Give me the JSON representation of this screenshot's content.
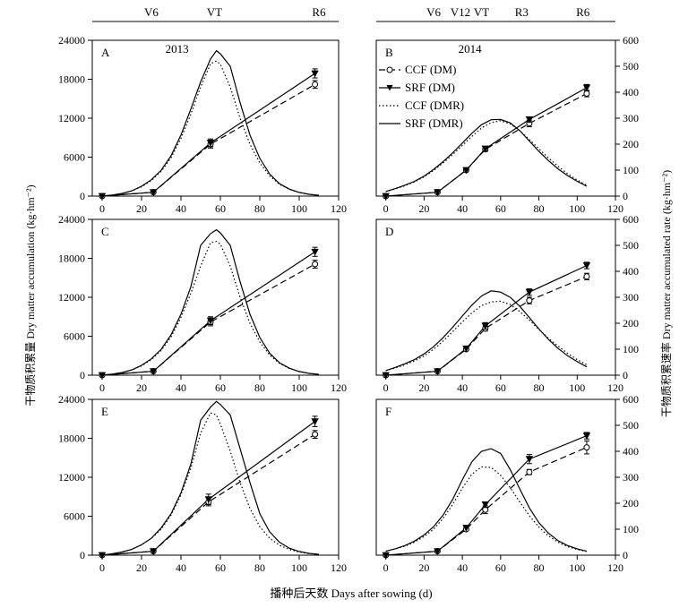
{
  "stage_bars": [
    {
      "labels": [
        {
          "text": "V6",
          "day": 25
        },
        {
          "text": "VT",
          "day": 57
        },
        {
          "text": "R6",
          "day": 110
        }
      ]
    },
    {
      "labels": [
        {
          "text": "V6",
          "day": 25
        },
        {
          "text": "V12",
          "day": 39
        },
        {
          "text": "VT",
          "day": 50
        },
        {
          "text": "R3",
          "day": 71
        },
        {
          "text": "R6",
          "day": 103
        }
      ]
    }
  ],
  "years": [
    {
      "panel": "A",
      "text": "2013"
    },
    {
      "panel": "B",
      "text": "2014"
    }
  ],
  "legend": [
    {
      "text": "CCF (DM)",
      "series": "CCF_DM"
    },
    {
      "text": "SRF (DM)",
      "series": "SRF_DM"
    },
    {
      "text": "CCF (DMR)",
      "series": "CCF_DMR"
    },
    {
      "text": "SRF (DMR)",
      "series": "SRF_DMR"
    }
  ],
  "axis_titles": {
    "y_left": "干物质积累量 Dry matter accumulation (kg·hm⁻²)",
    "y_right": "干物质积累速率 Dry matter accumulated rate (kg·hm⁻²)",
    "x": "播种后天数 Days after sowing (d)"
  },
  "chart_data": [
    {
      "type": "line",
      "panel": "A",
      "xlim": [
        -5,
        120
      ],
      "ylim": [
        0,
        24000
      ],
      "y2lim": [
        0,
        600
      ],
      "xticks": [
        "0",
        "20",
        "40",
        "60",
        "80",
        "100",
        "120"
      ],
      "yticks": [
        "0",
        "6000",
        "12000",
        "18000",
        "24000"
      ],
      "series": [
        {
          "name": "CCF (DM)",
          "x": [
            0,
            26,
            55,
            108
          ],
          "y": [
            0,
            600,
            8000,
            17200
          ],
          "err": [
            0,
            0,
            600,
            600
          ]
        },
        {
          "name": "SRF (DM)",
          "x": [
            0,
            26,
            55,
            108
          ],
          "y": [
            0,
            600,
            8200,
            18900
          ],
          "err": [
            0,
            0,
            600,
            700
          ]
        },
        {
          "name": "CCF (DMR)",
          "x": [
            0,
            5,
            10,
            15,
            20,
            25,
            30,
            35,
            40,
            45,
            50,
            55,
            58,
            60,
            65,
            70,
            75,
            80,
            85,
            90,
            95,
            100,
            105,
            110
          ],
          "y": [
            0,
            4,
            10,
            20,
            36,
            60,
            96,
            148,
            222,
            315,
            420,
            510,
            520,
            508,
            420,
            300,
            200,
            128,
            78,
            45,
            26,
            14,
            7,
            3
          ]
        },
        {
          "name": "SRF (DMR)",
          "x": [
            0,
            5,
            10,
            15,
            20,
            25,
            30,
            35,
            40,
            45,
            50,
            55,
            58,
            60,
            65,
            70,
            75,
            80,
            85,
            90,
            95,
            100,
            105,
            110
          ],
          "y": [
            0,
            4,
            10,
            20,
            38,
            63,
            100,
            156,
            235,
            335,
            440,
            528,
            560,
            548,
            500,
            360,
            235,
            145,
            85,
            48,
            27,
            14,
            7,
            3
          ]
        }
      ]
    },
    {
      "type": "line",
      "panel": "B",
      "xlim": [
        -5,
        120
      ],
      "ylim": [
        0,
        24000
      ],
      "y2lim": [
        0,
        600
      ],
      "xticks": [
        "0",
        "20",
        "40",
        "60",
        "80",
        "100",
        "120"
      ],
      "yticks": [
        "0",
        "100",
        "200",
        "300",
        "400",
        "500",
        "600"
      ],
      "series": [
        {
          "name": "CCF (DM)",
          "x": [
            0,
            27,
            42,
            52,
            75,
            105
          ],
          "y": [
            0,
            600,
            4000,
            7200,
            11200,
            15800
          ],
          "err": [
            0,
            0,
            0,
            300,
            500,
            500
          ]
        },
        {
          "name": "SRF (DM)",
          "x": [
            0,
            27,
            42,
            52,
            75,
            105
          ],
          "y": [
            0,
            600,
            4000,
            7300,
            11800,
            16700
          ],
          "err": [
            0,
            0,
            0,
            300,
            400,
            500
          ]
        },
        {
          "name": "CCF (DMR)",
          "x": [
            0,
            5,
            10,
            15,
            20,
            25,
            30,
            35,
            40,
            45,
            50,
            55,
            60,
            65,
            70,
            75,
            80,
            85,
            90,
            95,
            100,
            105
          ],
          "y": [
            18,
            28,
            40,
            55,
            74,
            99,
            128,
            160,
            195,
            230,
            262,
            283,
            290,
            278,
            252,
            218,
            182,
            147,
            115,
            86,
            62,
            42
          ]
        },
        {
          "name": "SRF (DMR)",
          "x": [
            0,
            5,
            10,
            15,
            20,
            25,
            30,
            35,
            40,
            45,
            50,
            55,
            60,
            65,
            70,
            75,
            80,
            85,
            90,
            95,
            100,
            105
          ],
          "y": [
            18,
            29,
            42,
            57,
            77,
            103,
            133,
            167,
            204,
            242,
            275,
            294,
            295,
            282,
            252,
            212,
            172,
            137,
            105,
            79,
            57,
            38
          ]
        }
      ]
    },
    {
      "type": "line",
      "panel": "C",
      "xlim": [
        -5,
        120
      ],
      "ylim": [
        0,
        24000
      ],
      "y2lim": [
        0,
        600
      ],
      "xticks": [
        "0",
        "20",
        "40",
        "60",
        "80",
        "100",
        "120"
      ],
      "yticks": [
        "0",
        "6000",
        "12000",
        "18000",
        "24000"
      ],
      "series": [
        {
          "name": "CCF (DM)",
          "x": [
            0,
            26,
            55,
            108
          ],
          "y": [
            0,
            600,
            8200,
            17100
          ],
          "err": [
            0,
            0,
            600,
            600
          ]
        },
        {
          "name": "SRF (DM)",
          "x": [
            0,
            26,
            55,
            108
          ],
          "y": [
            0,
            600,
            8400,
            19000
          ],
          "err": [
            0,
            0,
            600,
            700
          ]
        },
        {
          "name": "CCF (DMR)",
          "x": [
            0,
            5,
            10,
            15,
            20,
            25,
            30,
            35,
            40,
            45,
            50,
            55,
            58,
            60,
            65,
            70,
            75,
            80,
            85,
            90,
            95,
            100,
            105,
            110
          ],
          "y": [
            0,
            4,
            10,
            20,
            36,
            60,
            96,
            148,
            222,
            315,
            420,
            510,
            515,
            505,
            420,
            300,
            200,
            128,
            78,
            45,
            26,
            14,
            7,
            3
          ]
        },
        {
          "name": "SRF (DMR)",
          "x": [
            0,
            5,
            10,
            15,
            20,
            25,
            30,
            35,
            40,
            45,
            50,
            55,
            58,
            60,
            65,
            70,
            75,
            80,
            85,
            90,
            95,
            100,
            105,
            110
          ],
          "y": [
            0,
            4,
            10,
            20,
            38,
            63,
            100,
            156,
            235,
            340,
            500,
            545,
            560,
            548,
            500,
            360,
            235,
            145,
            85,
            48,
            27,
            14,
            7,
            3
          ]
        }
      ]
    },
    {
      "type": "line",
      "panel": "D",
      "xlim": [
        -5,
        120
      ],
      "ylim": [
        0,
        24000
      ],
      "y2lim": [
        0,
        600
      ],
      "xticks": [
        "0",
        "20",
        "40",
        "60",
        "80",
        "100",
        "120"
      ],
      "yticks": [
        "0",
        "100",
        "200",
        "300",
        "400",
        "500",
        "600"
      ],
      "series": [
        {
          "name": "CCF (DM)",
          "x": [
            0,
            27,
            42,
            52,
            75,
            105
          ],
          "y": [
            0,
            600,
            4000,
            7200,
            11500,
            15200
          ],
          "err": [
            0,
            0,
            0,
            400,
            500,
            500
          ]
        },
        {
          "name": "SRF (DM)",
          "x": [
            0,
            27,
            42,
            52,
            75,
            105
          ],
          "y": [
            0,
            600,
            4100,
            7600,
            12800,
            16900
          ],
          "err": [
            0,
            0,
            0,
            500,
            500,
            500
          ]
        },
        {
          "name": "CCF (DMR)",
          "x": [
            0,
            5,
            10,
            15,
            20,
            25,
            30,
            35,
            40,
            45,
            50,
            55,
            60,
            65,
            70,
            75,
            80,
            85,
            90,
            95,
            100,
            105
          ],
          "y": [
            18,
            28,
            40,
            55,
            74,
            100,
            132,
            168,
            205,
            240,
            268,
            282,
            285,
            272,
            245,
            212,
            176,
            142,
            112,
            84,
            60,
            40
          ]
        },
        {
          "name": "SRF (DMR)",
          "x": [
            0,
            5,
            10,
            15,
            20,
            25,
            30,
            35,
            40,
            45,
            50,
            55,
            60,
            65,
            70,
            75,
            80,
            85,
            90,
            95,
            100,
            105
          ],
          "y": [
            18,
            30,
            44,
            60,
            82,
            110,
            145,
            185,
            228,
            270,
            305,
            325,
            320,
            300,
            265,
            222,
            178,
            138,
            103,
            75,
            52,
            32
          ]
        }
      ]
    },
    {
      "type": "line",
      "panel": "E",
      "xlim": [
        -5,
        120
      ],
      "ylim": [
        0,
        24000
      ],
      "y2lim": [
        0,
        600
      ],
      "xticks": [
        "0",
        "20",
        "40",
        "60",
        "80",
        "100",
        "120"
      ],
      "yticks": [
        "0",
        "6000",
        "12000",
        "18000",
        "24000"
      ],
      "series": [
        {
          "name": "CCF (DM)",
          "x": [
            0,
            26,
            54,
            108
          ],
          "y": [
            0,
            600,
            8200,
            18600
          ],
          "err": [
            0,
            0,
            600,
            600
          ]
        },
        {
          "name": "SRF (DM)",
          "x": [
            0,
            26,
            54,
            108
          ],
          "y": [
            0,
            600,
            8600,
            20600
          ],
          "err": [
            0,
            0,
            800,
            800
          ]
        },
        {
          "name": "CCF (DMR)",
          "x": [
            0,
            5,
            10,
            15,
            20,
            25,
            30,
            35,
            40,
            45,
            50,
            55,
            58,
            60,
            65,
            70,
            75,
            80,
            85,
            90,
            95,
            100,
            105,
            110
          ],
          "y": [
            0,
            5,
            12,
            22,
            40,
            65,
            100,
            155,
            232,
            335,
            470,
            548,
            540,
            505,
            400,
            280,
            180,
            110,
            65,
            38,
            22,
            12,
            6,
            3
          ]
        },
        {
          "name": "SRF (DMR)",
          "x": [
            0,
            5,
            10,
            15,
            20,
            25,
            30,
            35,
            40,
            45,
            50,
            55,
            58,
            60,
            65,
            70,
            75,
            80,
            85,
            90,
            95,
            100,
            105,
            110
          ],
          "y": [
            0,
            5,
            12,
            22,
            40,
            65,
            105,
            160,
            240,
            350,
            520,
            570,
            592,
            580,
            540,
            410,
            280,
            160,
            90,
            50,
            27,
            14,
            7,
            3
          ]
        }
      ]
    },
    {
      "type": "line",
      "panel": "F",
      "xlim": [
        -5,
        120
      ],
      "ylim": [
        0,
        24000
      ],
      "y2lim": [
        0,
        600
      ],
      "xticks": [
        "0",
        "20",
        "40",
        "60",
        "80",
        "100",
        "120"
      ],
      "yticks": [
        "0",
        "100",
        "200",
        "300",
        "400",
        "500",
        "600"
      ],
      "series": [
        {
          "name": "CCF (DM)",
          "x": [
            0,
            27,
            42,
            52,
            75,
            105
          ],
          "y": [
            0,
            600,
            4000,
            7000,
            12800,
            16600
          ],
          "err": [
            0,
            0,
            0,
            600,
            400,
            1000
          ]
        },
        {
          "name": "SRF (DM)",
          "x": [
            0,
            27,
            42,
            52,
            75,
            105
          ],
          "y": [
            0,
            600,
            4200,
            7800,
            14800,
            18400
          ],
          "err": [
            0,
            0,
            0,
            400,
            700,
            500
          ]
        },
        {
          "name": "CCF (DMR)",
          "x": [
            0,
            5,
            10,
            15,
            20,
            25,
            30,
            35,
            40,
            45,
            50,
            55,
            60,
            65,
            70,
            75,
            80,
            85,
            90,
            95,
            100,
            105
          ],
          "y": [
            15,
            24,
            35,
            50,
            72,
            100,
            142,
            196,
            258,
            312,
            340,
            338,
            308,
            260,
            205,
            152,
            108,
            74,
            50,
            33,
            22,
            14
          ]
        },
        {
          "name": "SRF (DMR)",
          "x": [
            0,
            5,
            10,
            15,
            20,
            25,
            30,
            35,
            40,
            45,
            50,
            55,
            60,
            65,
            70,
            75,
            80,
            85,
            90,
            95,
            100,
            105
          ],
          "y": [
            15,
            25,
            37,
            54,
            78,
            110,
            155,
            215,
            290,
            360,
            400,
            410,
            392,
            330,
            255,
            182,
            125,
            85,
            56,
            37,
            24,
            15
          ]
        }
      ]
    }
  ]
}
